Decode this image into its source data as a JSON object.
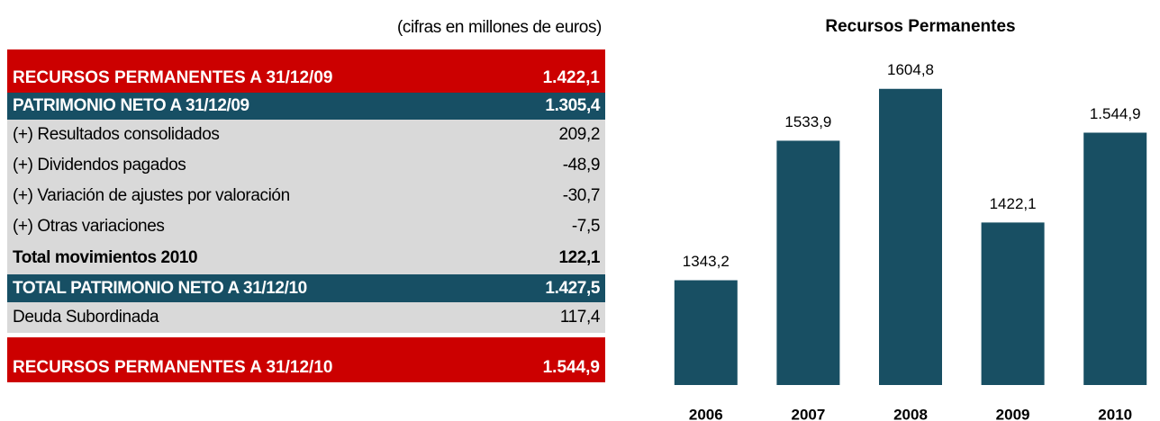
{
  "table": {
    "caption": "(cifras en millones de euros)",
    "rows": [
      [
        "RECURSOS PERMANENTES A 31/12/09",
        "1.422,1"
      ],
      [
        "PATRIMONIO NETO A 31/12/09",
        "1.305,4"
      ],
      [
        "(+) Resultados consolidados",
        "209,2"
      ],
      [
        "(+) Dividendos pagados",
        "-48,9"
      ],
      [
        "(+) Variación de ajustes por valoración",
        "-30,7"
      ],
      [
        "(+) Otras variaciones",
        "-7,5"
      ],
      [
        "Total movimientos 2010",
        "122,1"
      ],
      [
        "TOTAL PATRIMONIO NETO A 31/12/10",
        "1.427,5"
      ],
      [
        "Deuda Subordinada",
        "117,4"
      ],
      [
        "RECURSOS PERMANENTES A 31/12/10",
        "1.544,9"
      ]
    ]
  },
  "chart_data": {
    "type": "bar",
    "title": "Recursos Permanentes",
    "categories": [
      "2006",
      "2007",
      "2008",
      "2009",
      "2010"
    ],
    "values": [
      1343.2,
      1533.9,
      1604.8,
      1422.1,
      1544.9
    ],
    "value_labels": [
      "1343,2",
      "1533,9",
      "1604,8",
      "1422,1",
      "1.544,9"
    ],
    "color": "#184f63",
    "ylim": [
      1200,
      1650
    ]
  }
}
